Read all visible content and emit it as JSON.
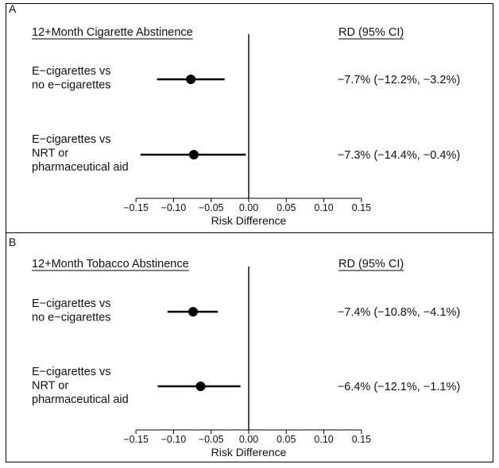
{
  "chart_data": [
    {
      "type": "forest",
      "panel": "A",
      "header_left": "12+Month Cigarette Abstinence",
      "header_right": "RD (95% CI)",
      "xlabel": "Risk Difference",
      "xlim": [
        -0.15,
        0.15
      ],
      "xticks": [
        "-0.15",
        "-0.10",
        "-0.05",
        "0.00",
        "0.05",
        "0.10",
        "0.15"
      ],
      "rows": [
        {
          "label": [
            "E-cigarettes vs",
            "no e-cigarettes"
          ],
          "estimate": -0.077,
          "lower": -0.122,
          "upper": -0.032,
          "text": "-7.7% (-12.2%, -3.2%)"
        },
        {
          "label": [
            "E-cigarettes vs",
            "NRT or",
            "pharmaceutical aid"
          ],
          "estimate": -0.073,
          "lower": -0.144,
          "upper": -0.004,
          "text": "-7.3% (-14.4%, -0.4%)"
        }
      ]
    },
    {
      "type": "forest",
      "panel": "B",
      "header_left": "12+Month Tobacco Abstinence",
      "header_right": "RD (95% CI)",
      "xlabel": "Risk Difference",
      "xlim": [
        -0.15,
        0.15
      ],
      "xticks": [
        "-0.15",
        "-0.10",
        "-0.05",
        "0.00",
        "0.05",
        "0.10",
        "0.15"
      ],
      "rows": [
        {
          "label": [
            "E-cigarettes vs",
            "no e-cigarettes"
          ],
          "estimate": -0.074,
          "lower": -0.108,
          "upper": -0.041,
          "text": "-7.4% (-10.8%, -4.1%)"
        },
        {
          "label": [
            "E-cigarettes vs",
            "NRT or",
            "pharmaceutical aid"
          ],
          "estimate": -0.064,
          "lower": -0.121,
          "upper": -0.011,
          "text": "-6.4% (-12.1%, -1.1%)"
        }
      ]
    }
  ]
}
